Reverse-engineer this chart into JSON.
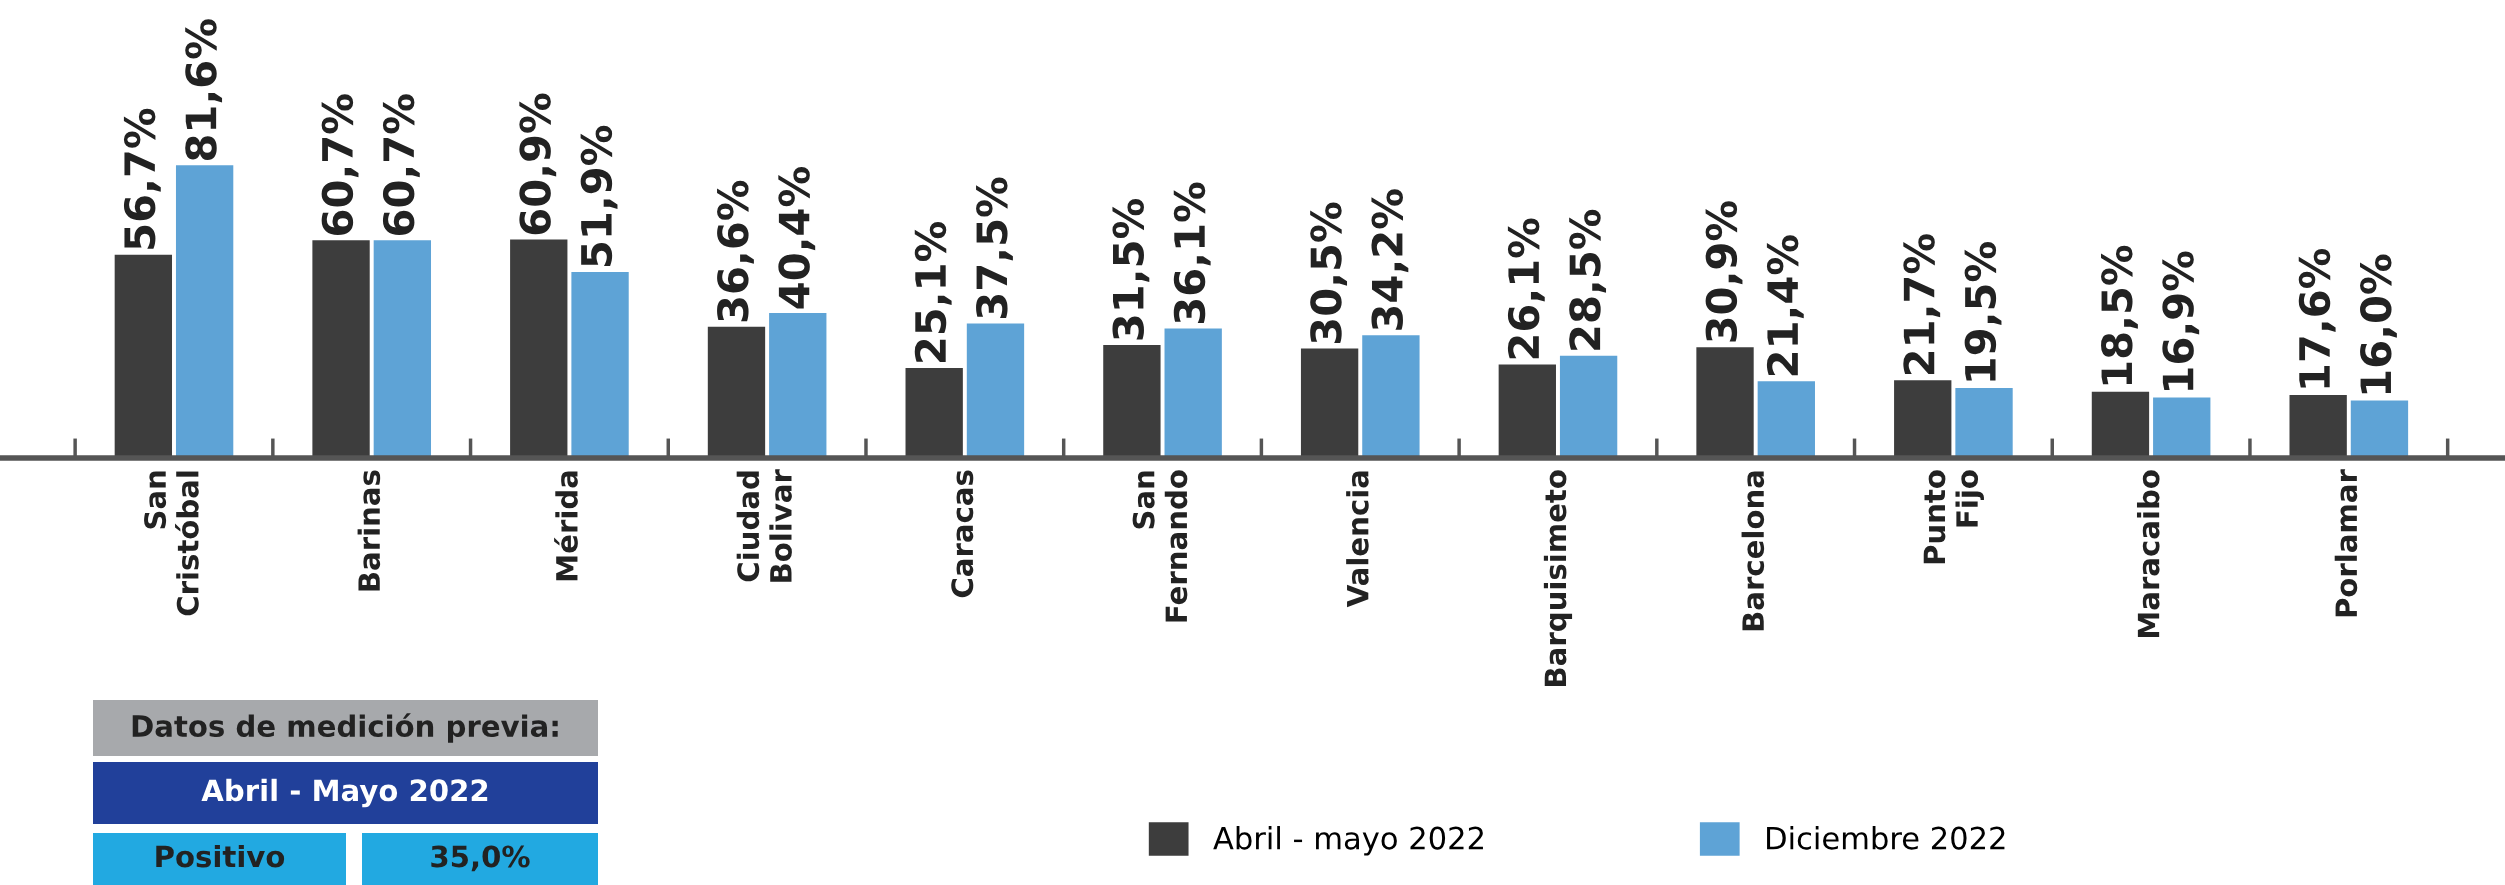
{
  "chart_data": {
    "type": "bar",
    "categories": [
      "San\nCristóbal",
      "Barinas",
      "Mérida",
      "Ciudad\nBolivar",
      "Caracas",
      "San\nFernando",
      "Valencia",
      "Barquisimeto",
      "Barcelona",
      "Punto\nFijo",
      "Maracaibo",
      "Porlamar"
    ],
    "series": [
      {
        "name": "Abril - mayo 2022",
        "color": "#3d3d3d",
        "values": [
          56.7,
          60.7,
          60.9,
          36.6,
          25.1,
          31.5,
          30.5,
          26.1,
          30.9,
          21.7,
          18.5,
          17.6
        ],
        "value_labels": [
          "56,7%",
          "60,7%",
          "60,9%",
          "36,6%",
          "25,1%",
          "31,5%",
          "30,5%",
          "26,1%",
          "30,9%",
          "21,7%",
          "18,5%",
          "17,6%"
        ]
      },
      {
        "name": "Diciembre 2022",
        "color": "#5ea3d6",
        "values": [
          81.6,
          60.7,
          51.9,
          40.4,
          37.5,
          36.1,
          34.2,
          28.5,
          21.4,
          19.5,
          16.9,
          16.0
        ],
        "value_labels": [
          "81,6%",
          "60,7%",
          "51,9%",
          "40,4%",
          "37,5%",
          "36,1%",
          "34,2%",
          "28,5%",
          "21,4%",
          "19,5%",
          "16,9%",
          "16,0%"
        ]
      }
    ],
    "annotations": [
      "Datos de medición previa:",
      "Abril - Mayo 2022",
      "Positivo",
      "35,0%"
    ],
    "legend": "bottom",
    "grid": false
  }
}
